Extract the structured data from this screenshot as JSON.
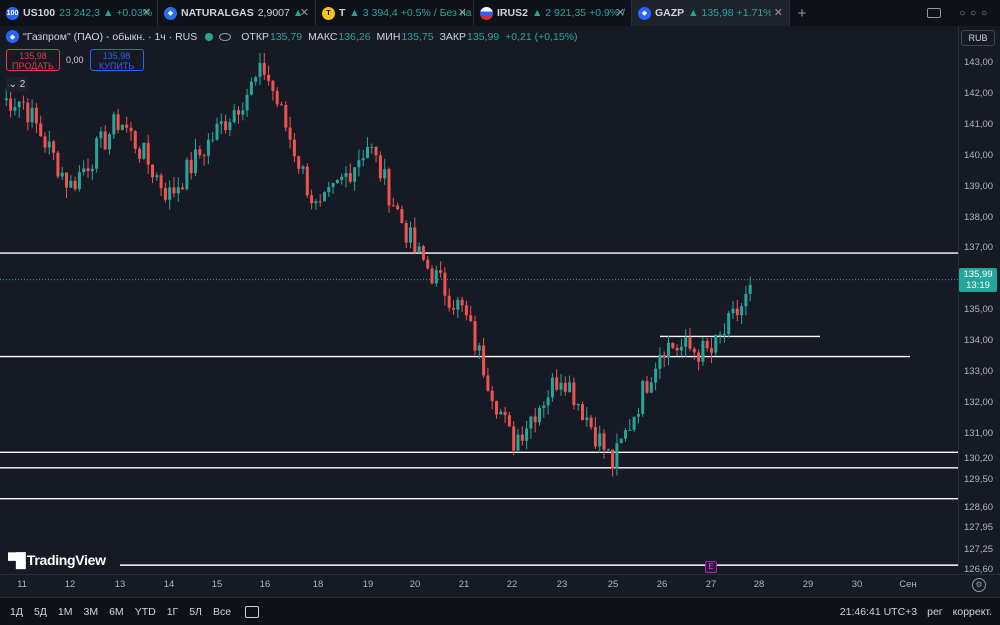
{
  "tabs": [
    {
      "symbol": "US100",
      "price": "23 242,3",
      "change": "▲ +0.03%",
      "icon_text": "100",
      "icon_color": "#2962ff",
      "active": false
    },
    {
      "symbol": "NATURALGAS",
      "price": "2,9007",
      "change": "▲",
      "icon_text": "",
      "icon_color": "#2a6ef0",
      "active": false
    },
    {
      "symbol": "T",
      "price": "▲ 3 394,4",
      "change": "+0.5% / Без на",
      "icon_text": "T",
      "icon_color": "#f5c518",
      "active": false
    },
    {
      "symbol": "IRUS2",
      "price": "▲ 2 921,35",
      "change": "+0.9% /",
      "icon_text": "",
      "icon_color": "#d32f2f",
      "active": false
    },
    {
      "symbol": "GAZP",
      "price": "▲ 135,98",
      "change": "+1.71% /",
      "icon_text": "",
      "icon_color": "#2962ff",
      "active": true
    }
  ],
  "legend": {
    "title": "\"Газпром\" (ПАО) - обыкн. · 1ч · RUS",
    "open_label": "ОТКР",
    "open": "135,79",
    "high_label": "МАКС",
    "high": "136,26",
    "low_label": "МИН",
    "low": "135,75",
    "close_label": "ЗАКР",
    "close": "135,99",
    "change": "+0,21 (+0,15%)"
  },
  "trade": {
    "sell_price": "135,98",
    "sell_label": "ПРОДАТЬ",
    "spread": "0,00",
    "buy_price": "135,98",
    "buy_label": "КУПИТЬ"
  },
  "collapse_label": "⌄ 2",
  "currency": "RUB",
  "current_price": {
    "value": "135,99",
    "countdown": "13:19"
  },
  "logo_text": "TradingView",
  "event_label": "E",
  "colors": {
    "up": "#26a69a",
    "down": "#ef5350",
    "sell": "#f23645",
    "buy": "#2962ff"
  },
  "timeframes": [
    "1Д",
    "5Д",
    "1М",
    "3М",
    "6М",
    "YTD",
    "1Г",
    "5Л",
    "Все"
  ],
  "status": {
    "time": "21:46:41 UTC+3",
    "session": "рег",
    "adjust": "коррект."
  },
  "chart_data": {
    "type": "candlestick",
    "y_ticks": [
      "143,00",
      "142,00",
      "141,00",
      "140,00",
      "139,00",
      "138,00",
      "137,00",
      "136,00",
      "135,00",
      "134,00",
      "133,00",
      "132,00",
      "131,00",
      "130,20",
      "129,50",
      "128,60",
      "127,95",
      "127,25",
      "126,60"
    ],
    "y_tick_values": [
      143,
      142,
      141,
      140,
      139,
      138,
      137,
      136,
      135,
      134,
      133,
      132,
      131,
      130.2,
      129.5,
      128.6,
      127.95,
      127.25,
      126.6
    ],
    "x_ticks": [
      "11",
      "12",
      "13",
      "14",
      "15",
      "16",
      "18",
      "19",
      "20",
      "21",
      "22",
      "23",
      "25",
      "26",
      "27",
      "28",
      "29",
      "30",
      "Сен"
    ],
    "ylim": [
      126.6,
      143.5
    ],
    "horizontal_lines": [
      136.85,
      134.15,
      133.5,
      130.4,
      129.9,
      128.9,
      126.75
    ],
    "close_path": [
      {
        "date": "11",
        "close": 141.8
      },
      {
        "date": "12",
        "close": 139.0
      },
      {
        "date": "13",
        "close": 141.2
      },
      {
        "date": "14",
        "close": 138.7
      },
      {
        "date": "15",
        "close": 140.8
      },
      {
        "date": "16",
        "close": 142.8
      },
      {
        "date": "18",
        "close": 138.1
      },
      {
        "date": "19",
        "close": 140.4
      },
      {
        "date": "20",
        "close": 136.9
      },
      {
        "date": "21",
        "close": 134.9
      },
      {
        "date": "22",
        "close": 130.7
      },
      {
        "date": "23",
        "close": 133.0
      },
      {
        "date": "25",
        "close": 130.0
      },
      {
        "date": "26",
        "close": 133.9
      },
      {
        "date": "27",
        "close": 133.6
      },
      {
        "date": "28",
        "close": 136.0
      }
    ]
  }
}
